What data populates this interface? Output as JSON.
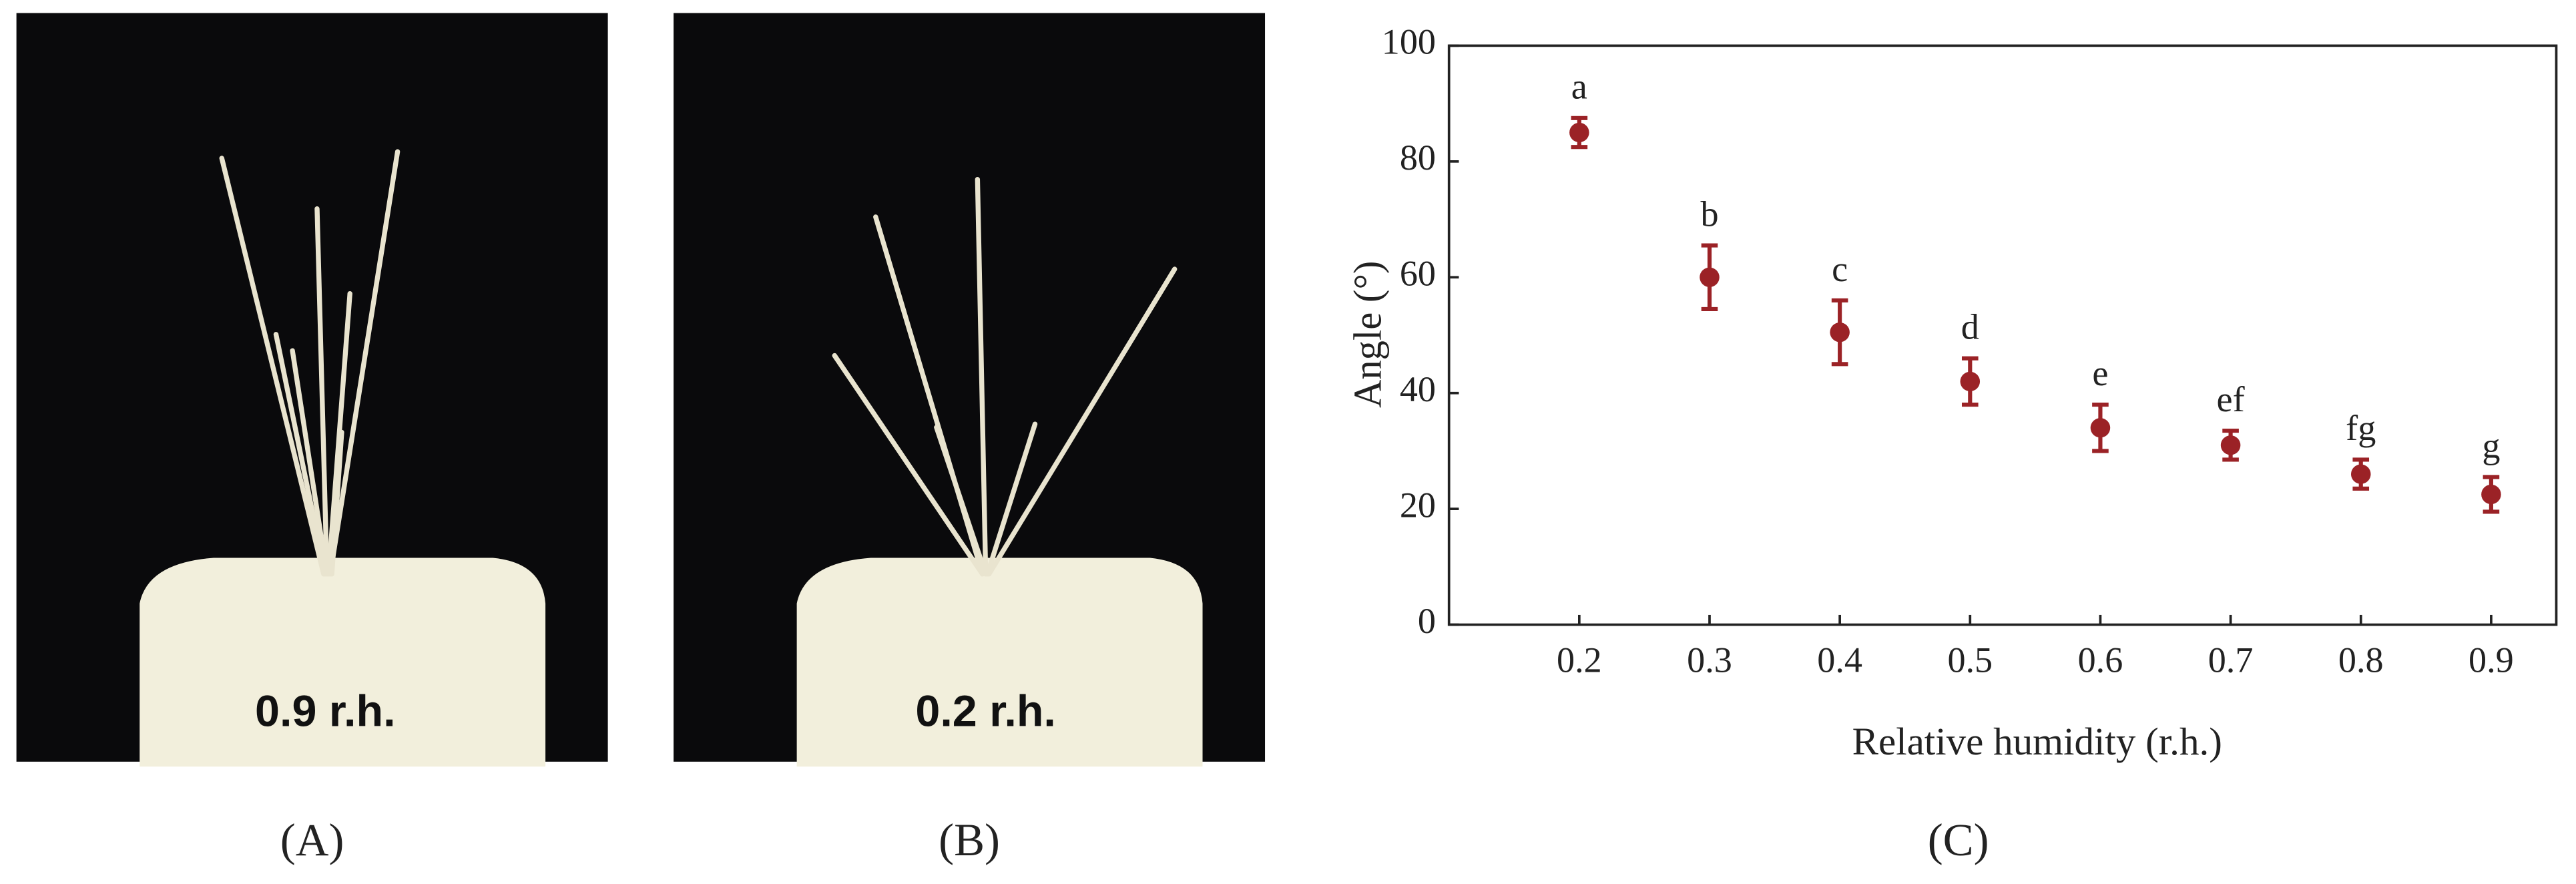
{
  "panels": [
    {
      "label": "(A)",
      "photo_caption": "0.9 r.h."
    },
    {
      "label": "(B)",
      "photo_caption": "0.2 r.h."
    },
    {
      "label": "(C)"
    }
  ],
  "chart_data": {
    "type": "scatter",
    "xlabel": "Relative humidity (r.h.)",
    "ylabel": "Angle (°)",
    "x": [
      0.2,
      0.3,
      0.4,
      0.5,
      0.6,
      0.7,
      0.8,
      0.9
    ],
    "series": [
      {
        "color": "#9b2226",
        "values": [
          85,
          60,
          50.5,
          42,
          34,
          31,
          26,
          22.5
        ],
        "errors": [
          2.5,
          5.5,
          5.5,
          4,
          4,
          2.5,
          2.5,
          3
        ]
      }
    ],
    "annotations": [
      "a",
      "b",
      "c",
      "d",
      "e",
      "ef",
      "fg",
      "g"
    ],
    "xlim": [
      0.1,
      0.95
    ],
    "ylim": [
      0,
      100
    ],
    "xticks": [
      0.2,
      0.3,
      0.4,
      0.5,
      0.6,
      0.7,
      0.8,
      0.9
    ],
    "yticks": [
      0,
      20,
      40,
      60,
      80,
      100
    ]
  }
}
